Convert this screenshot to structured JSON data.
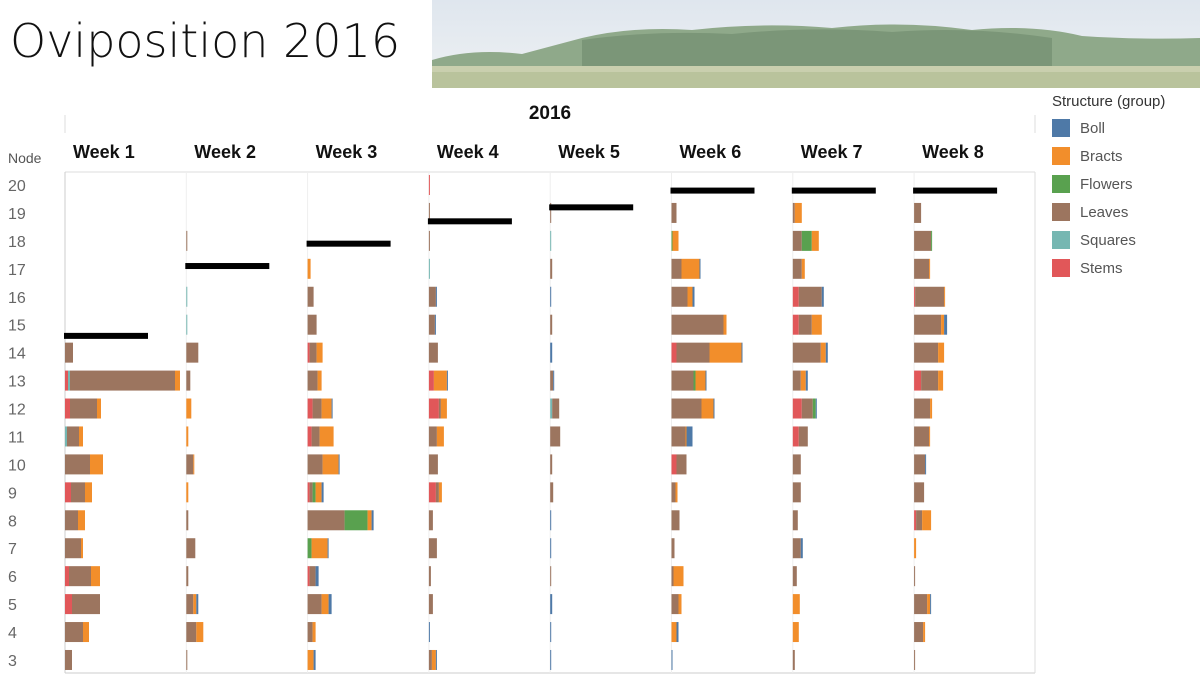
{
  "title": "Oviposition 2016",
  "chart_data": {
    "type": "bar",
    "orientation": "horizontal-stacked",
    "column_header": "2016",
    "row_header": "Node",
    "nodes": [
      20,
      19,
      18,
      17,
      16,
      15,
      14,
      13,
      12,
      11,
      10,
      9,
      8,
      7,
      6,
      5,
      4,
      3
    ],
    "weeks": [
      "Week 1",
      "Week 2",
      "Week 3",
      "Week 4",
      "Week 5",
      "Week 6",
      "Week 7",
      "Week 8"
    ],
    "segment_order": [
      "Stems",
      "Squares",
      "Leaves",
      "Flowers",
      "Bracts",
      "Boll"
    ],
    "legend": {
      "title": "Structure (group)",
      "placement": "right",
      "items": [
        {
          "name": "Boll",
          "color": "#4e79a7"
        },
        {
          "name": "Bracts",
          "color": "#f28e2b"
        },
        {
          "name": "Flowers",
          "color": "#59a14f"
        },
        {
          "name": "Leaves",
          "color": "#9c755f"
        },
        {
          "name": "Squares",
          "color": "#76b7b2"
        },
        {
          "name": "Stems",
          "color": "#e15759"
        }
      ]
    },
    "marker_line_node": [
      14.6,
      17.1,
      17.9,
      18.7,
      19.2,
      19.8,
      19.8,
      19.8
    ],
    "values_note_units": "relative (no axis shown)",
    "series": [
      {
        "week": "Week 1",
        "bars": {
          "14": [
            0,
            0,
            8,
            0,
            0,
            0
          ],
          "13": [
            3,
            2,
            105,
            0,
            5,
            0
          ],
          "12": [
            5,
            0,
            27,
            0,
            4,
            0
          ],
          "11": [
            0,
            2,
            12,
            0,
            4,
            0
          ],
          "10": [
            0,
            0,
            25,
            0,
            13,
            0
          ],
          "9": [
            6,
            0,
            14,
            0,
            7,
            0
          ],
          "8": [
            0,
            0,
            13,
            0,
            7,
            0
          ],
          "7": [
            0,
            0,
            16,
            0,
            2,
            0
          ],
          "6": [
            4,
            0,
            22,
            0,
            9,
            0
          ],
          "5": [
            7,
            0,
            28,
            0,
            0,
            0
          ],
          "4": [
            0,
            0,
            18,
            0,
            6,
            0
          ],
          "3": [
            0,
            0,
            7,
            0,
            0,
            0
          ]
        }
      },
      {
        "week": "Week 2",
        "bars": {
          "18": [
            0,
            0,
            1,
            0,
            0,
            0
          ],
          "16": [
            0,
            1,
            0,
            0,
            0,
            0
          ],
          "15": [
            0,
            1,
            0,
            0,
            0,
            0
          ],
          "14": [
            0,
            0,
            12,
            0,
            0,
            0
          ],
          "13": [
            0,
            0,
            4,
            0,
            0,
            0
          ],
          "12": [
            0,
            0,
            0,
            0,
            5,
            0
          ],
          "11": [
            0,
            0,
            0,
            0,
            2,
            0
          ],
          "10": [
            0,
            0,
            7,
            0,
            1,
            0
          ],
          "9": [
            0,
            0,
            0,
            0,
            2,
            0
          ],
          "8": [
            0,
            0,
            2,
            0,
            0,
            0
          ],
          "7": [
            0,
            0,
            9,
            0,
            0,
            0
          ],
          "6": [
            0,
            0,
            2,
            0,
            0,
            0
          ],
          "5": [
            0,
            0,
            7,
            0,
            3,
            2
          ],
          "4": [
            0,
            0,
            10,
            0,
            7,
            0
          ],
          "3": [
            0,
            0,
            1,
            0,
            0,
            0
          ]
        }
      },
      {
        "week": "Week 3",
        "bars": {
          "17": [
            0,
            0,
            0,
            0,
            3,
            0
          ],
          "16": [
            0,
            0,
            6,
            0,
            0,
            0
          ],
          "15": [
            0,
            0,
            9,
            0,
            0,
            0
          ],
          "14": [
            2,
            0,
            7,
            0,
            6,
            0
          ],
          "13": [
            0,
            0,
            10,
            0,
            4,
            0
          ],
          "12": [
            5,
            0,
            9,
            0,
            10,
            1
          ],
          "11": [
            4,
            0,
            8,
            0,
            14,
            0
          ],
          "10": [
            0,
            0,
            15,
            0,
            16,
            1
          ],
          "9": [
            2,
            0,
            3,
            3,
            6,
            2
          ],
          "8": [
            0,
            0,
            37,
            23,
            4,
            2
          ],
          "7": [
            0,
            0,
            0,
            4,
            16,
            1
          ],
          "6": [
            2,
            0,
            6,
            0,
            0,
            3
          ],
          "5": [
            0,
            0,
            14,
            0,
            7,
            3
          ],
          "4": [
            0,
            0,
            5,
            0,
            3,
            0
          ],
          "3": [
            0,
            0,
            0,
            0,
            6,
            2
          ]
        }
      },
      {
        "week": "Week 4",
        "bars": {
          "20": [
            1,
            0,
            0,
            0,
            0,
            0
          ],
          "19": [
            0,
            0,
            1,
            0,
            0,
            0
          ],
          "18": [
            0,
            0,
            1,
            0,
            0,
            0
          ],
          "17": [
            0,
            1,
            0,
            0,
            0,
            0
          ],
          "16": [
            0,
            0,
            7,
            0,
            0,
            1
          ],
          "15": [
            0,
            0,
            6,
            0,
            0,
            1
          ],
          "14": [
            0,
            0,
            9,
            0,
            0,
            0
          ],
          "13": [
            5,
            0,
            0,
            0,
            13,
            1
          ],
          "12": [
            10,
            0,
            2,
            0,
            6,
            0
          ],
          "11": [
            0,
            0,
            8,
            0,
            7,
            0
          ],
          "10": [
            0,
            0,
            9,
            0,
            0,
            0
          ],
          "9": [
            7,
            0,
            3,
            0,
            3,
            0
          ],
          "8": [
            0,
            0,
            4,
            0,
            0,
            0
          ],
          "7": [
            0,
            0,
            8,
            0,
            0,
            0
          ],
          "6": [
            0,
            0,
            2,
            0,
            0,
            0
          ],
          "5": [
            0,
            0,
            4,
            0,
            0,
            0
          ],
          "4": [
            0,
            0,
            0,
            0,
            0,
            1
          ],
          "3": [
            0,
            0,
            3,
            0,
            4,
            1
          ]
        }
      },
      {
        "week": "Week 5",
        "bars": {
          "19": [
            0,
            0,
            1,
            0,
            0,
            0
          ],
          "18": [
            0,
            1,
            0,
            0,
            0,
            0
          ],
          "17": [
            0,
            0,
            2,
            0,
            0,
            0
          ],
          "16": [
            0,
            0,
            0,
            0,
            0,
            1
          ],
          "15": [
            0,
            0,
            2,
            0,
            0,
            0
          ],
          "14": [
            0,
            0,
            0,
            0,
            0,
            2
          ],
          "13": [
            0,
            0,
            3,
            0,
            0,
            1
          ],
          "12": [
            0,
            2,
            7,
            0,
            0,
            0
          ],
          "11": [
            0,
            0,
            10,
            0,
            0,
            0
          ],
          "10": [
            0,
            0,
            2,
            0,
            0,
            0
          ],
          "9": [
            0,
            0,
            3,
            0,
            0,
            0
          ],
          "8": [
            0,
            0,
            0,
            0,
            0,
            1
          ],
          "7": [
            0,
            0,
            0,
            0,
            0,
            1
          ],
          "6": [
            0,
            0,
            1,
            0,
            0,
            0
          ],
          "5": [
            0,
            0,
            0,
            0,
            0,
            2
          ],
          "4": [
            0,
            0,
            0,
            0,
            0,
            1
          ],
          "3": [
            0,
            0,
            0,
            0,
            0,
            1
          ]
        }
      },
      {
        "week": "Week 6",
        "bars": {
          "19": [
            0,
            0,
            5,
            0,
            0,
            0
          ],
          "18": [
            0,
            0,
            0,
            1,
            6,
            0
          ],
          "17": [
            0,
            0,
            10,
            0,
            18,
            1
          ],
          "16": [
            0,
            0,
            16,
            0,
            5,
            2
          ],
          "15": [
            0,
            0,
            52,
            0,
            3,
            0
          ],
          "14": [
            5,
            0,
            33,
            0,
            32,
            1
          ],
          "13": [
            0,
            0,
            22,
            2,
            10,
            1
          ],
          "12": [
            0,
            0,
            30,
            0,
            12,
            1
          ],
          "11": [
            0,
            0,
            14,
            0,
            1,
            6
          ],
          "10": [
            5,
            0,
            10,
            0,
            0,
            0
          ],
          "9": [
            0,
            0,
            4,
            0,
            2,
            0
          ],
          "8": [
            0,
            0,
            8,
            0,
            0,
            0
          ],
          "7": [
            0,
            0,
            3,
            0,
            0,
            0
          ],
          "6": [
            0,
            0,
            2,
            0,
            10,
            0
          ],
          "5": [
            0,
            0,
            7,
            0,
            3,
            0
          ],
          "4": [
            0,
            0,
            0,
            0,
            5,
            2
          ],
          "3": [
            0,
            0,
            0,
            0,
            0,
            1
          ]
        }
      },
      {
        "week": "Week 7",
        "bars": {
          "19": [
            0,
            0,
            2,
            0,
            7,
            0
          ],
          "18": [
            0,
            0,
            9,
            10,
            7,
            0
          ],
          "17": [
            0,
            0,
            9,
            0,
            3,
            0
          ],
          "16": [
            6,
            0,
            23,
            0,
            0,
            2
          ],
          "15": [
            6,
            0,
            13,
            0,
            10,
            0
          ],
          "14": [
            0,
            0,
            28,
            0,
            5,
            2
          ],
          "13": [
            0,
            0,
            8,
            0,
            5,
            2
          ],
          "12": [
            9,
            0,
            11,
            3,
            0,
            1
          ],
          "11": [
            6,
            0,
            9,
            0,
            0,
            0
          ],
          "10": [
            0,
            0,
            8,
            0,
            0,
            0
          ],
          "9": [
            0,
            0,
            8,
            0,
            0,
            0
          ],
          "8": [
            0,
            0,
            5,
            0,
            0,
            0
          ],
          "7": [
            0,
            0,
            8,
            0,
            0,
            2
          ],
          "6": [
            0,
            0,
            4,
            0,
            0,
            0
          ],
          "5": [
            0,
            0,
            0,
            0,
            7,
            0
          ],
          "4": [
            0,
            0,
            0,
            0,
            6,
            0
          ],
          "3": [
            0,
            0,
            2,
            0,
            0,
            0
          ]
        }
      },
      {
        "week": "Week 8",
        "bars": {
          "19": [
            0,
            0,
            7,
            0,
            0,
            0
          ],
          "18": [
            0,
            0,
            17,
            1,
            0,
            0
          ],
          "17": [
            0,
            0,
            15,
            0,
            1,
            0
          ],
          "16": [
            1,
            0,
            29,
            0,
            1,
            0
          ],
          "15": [
            0,
            0,
            27,
            0,
            3,
            3
          ],
          "14": [
            0,
            0,
            24,
            0,
            6,
            0
          ],
          "13": [
            7,
            0,
            17,
            0,
            5,
            0
          ],
          "12": [
            0,
            0,
            16,
            0,
            2,
            0
          ],
          "11": [
            0,
            0,
            15,
            0,
            1,
            0
          ],
          "10": [
            0,
            0,
            11,
            0,
            0,
            1
          ],
          "9": [
            0,
            0,
            10,
            0,
            0,
            0
          ],
          "8": [
            2,
            0,
            6,
            0,
            9,
            0
          ],
          "7": [
            0,
            0,
            0,
            0,
            2,
            0
          ],
          "6": [
            0,
            0,
            1,
            0,
            0,
            0
          ],
          "5": [
            0,
            0,
            13,
            0,
            3,
            1
          ],
          "4": [
            0,
            0,
            9,
            0,
            2,
            0
          ],
          "3": [
            0,
            0,
            1,
            0,
            0,
            0
          ]
        }
      }
    ]
  }
}
